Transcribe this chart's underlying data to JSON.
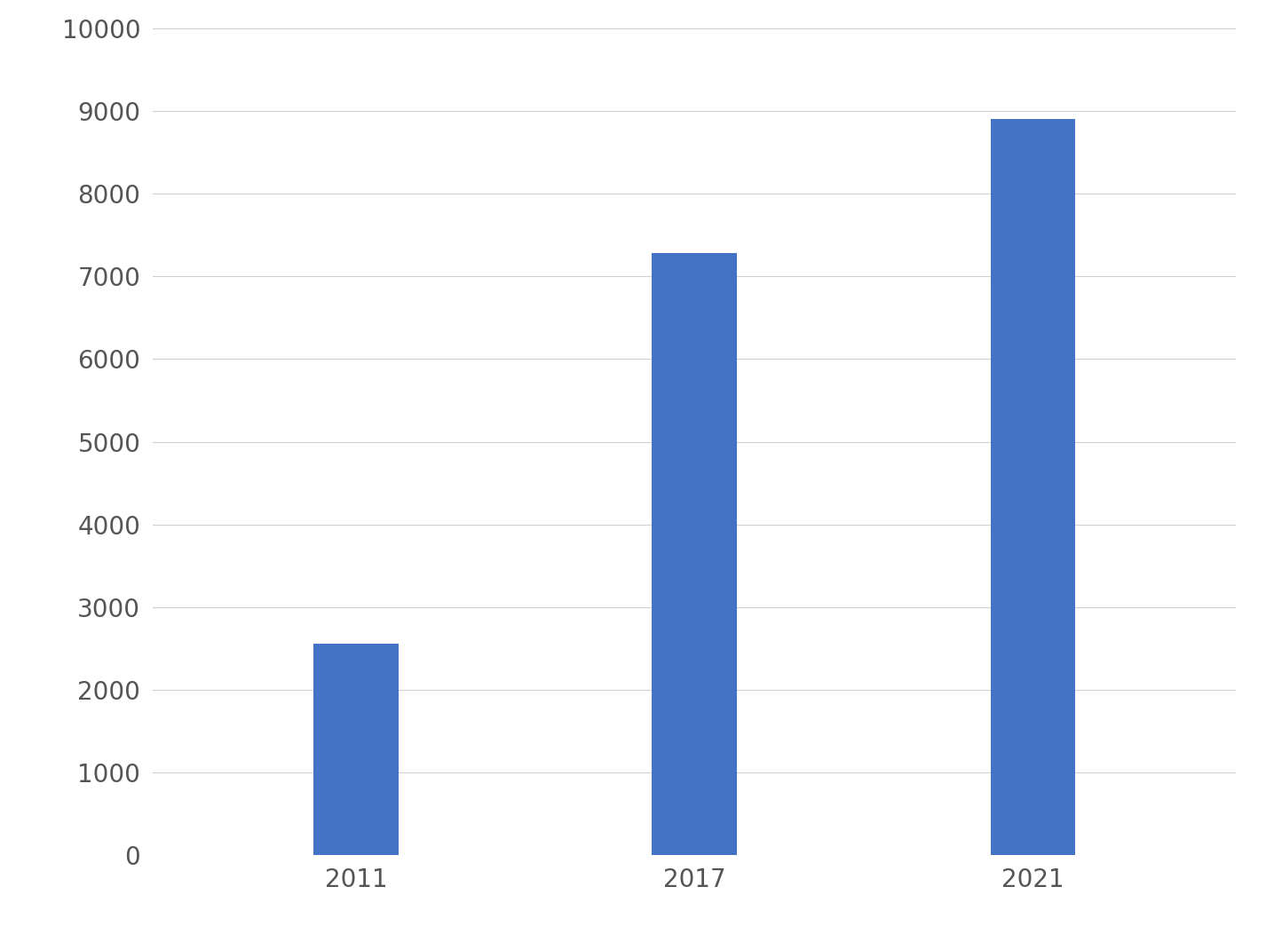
{
  "categories": [
    "2011",
    "2017",
    "2021"
  ],
  "values": [
    2560,
    7280,
    8900
  ],
  "bar_color": "#4472C4",
  "bar_width": 0.25,
  "ylim": [
    0,
    10000
  ],
  "yticks": [
    0,
    1000,
    2000,
    3000,
    4000,
    5000,
    6000,
    7000,
    8000,
    9000,
    10000
  ],
  "grid_color": "#d0d0d0",
  "background_color": "#ffffff",
  "tick_fontsize": 20,
  "xtick_fontsize": 20
}
